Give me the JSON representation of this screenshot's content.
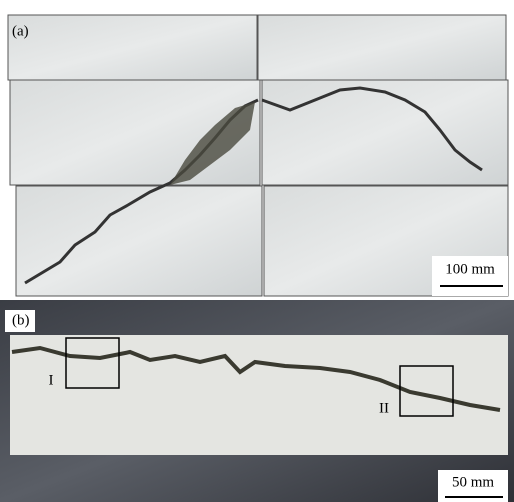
{
  "panels": [
    {
      "label": "(a)",
      "scale_bar": "100 mm"
    },
    {
      "label": "(b)",
      "scale_bar": "50 mm",
      "regions": [
        "I",
        "II"
      ]
    }
  ]
}
